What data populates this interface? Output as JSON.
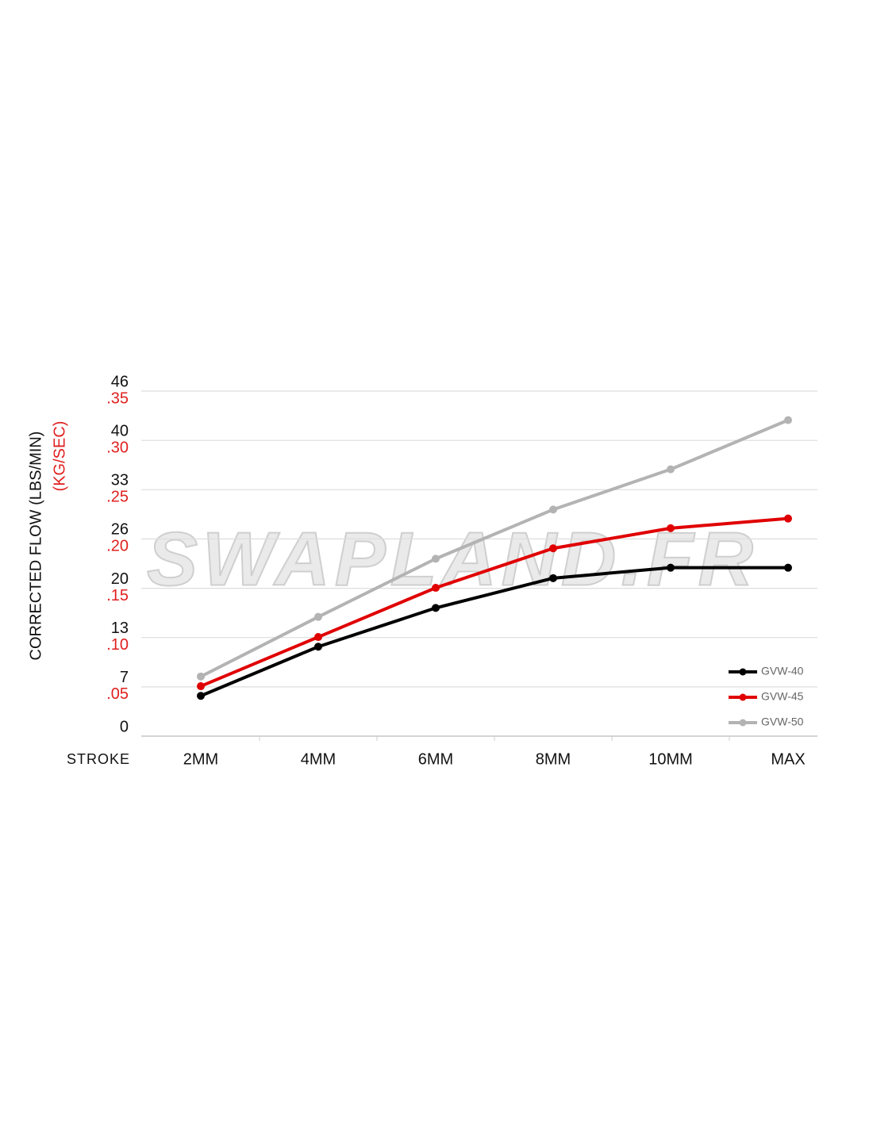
{
  "chart_data": {
    "type": "line",
    "y_label": "CORRECTED FLOW (LBS/MIN)",
    "y2_label": "(KG/SEC)",
    "x_label": "STROKE",
    "watermark": "SWAPLAND.FR",
    "categories": [
      "2MM",
      "4MM",
      "6MM",
      "8MM",
      "10MM",
      "MAX"
    ],
    "series": [
      {
        "name": "GVW-40",
        "color": "#000000",
        "values": [
          5.4,
          12.0,
          17.2,
          21.2,
          22.6,
          22.6
        ]
      },
      {
        "name": "GVW-45",
        "color": "#e00000",
        "values": [
          6.7,
          13.3,
          19.9,
          25.2,
          27.9,
          29.2
        ]
      },
      {
        "name": "GVW-50",
        "color": "#b3b3b3",
        "values": [
          8.0,
          16.0,
          23.8,
          30.4,
          35.8,
          42.4
        ]
      }
    ],
    "ylim": [
      0,
      46.3
    ],
    "yticks": [
      0,
      {
        "value": 6.61,
        "label": "7"
      },
      {
        "value": 13.23,
        "label": "13"
      },
      {
        "value": 19.84,
        "label": "20"
      },
      {
        "value": 26.46,
        "label": "26"
      },
      {
        "value": 33.07,
        "label": "33"
      },
      {
        "value": 39.68,
        "label": "40"
      },
      {
        "value": 46.3,
        "label": "46"
      }
    ],
    "y2lim": [
      0,
      0.35
    ],
    "y2ticks": [
      {
        "value": 0.05,
        "label": ".05"
      },
      {
        "value": 0.1,
        "label": ".10"
      },
      {
        "value": 0.15,
        "label": ".15"
      },
      {
        "value": 0.2,
        "label": ".20"
      },
      {
        "value": 0.25,
        "label": ".25"
      },
      {
        "value": 0.3,
        "label": ".30"
      },
      {
        "value": 0.35,
        "label": ".35"
      }
    ],
    "y2_color": "#e02020",
    "grid": true,
    "legend": "lower right"
  }
}
